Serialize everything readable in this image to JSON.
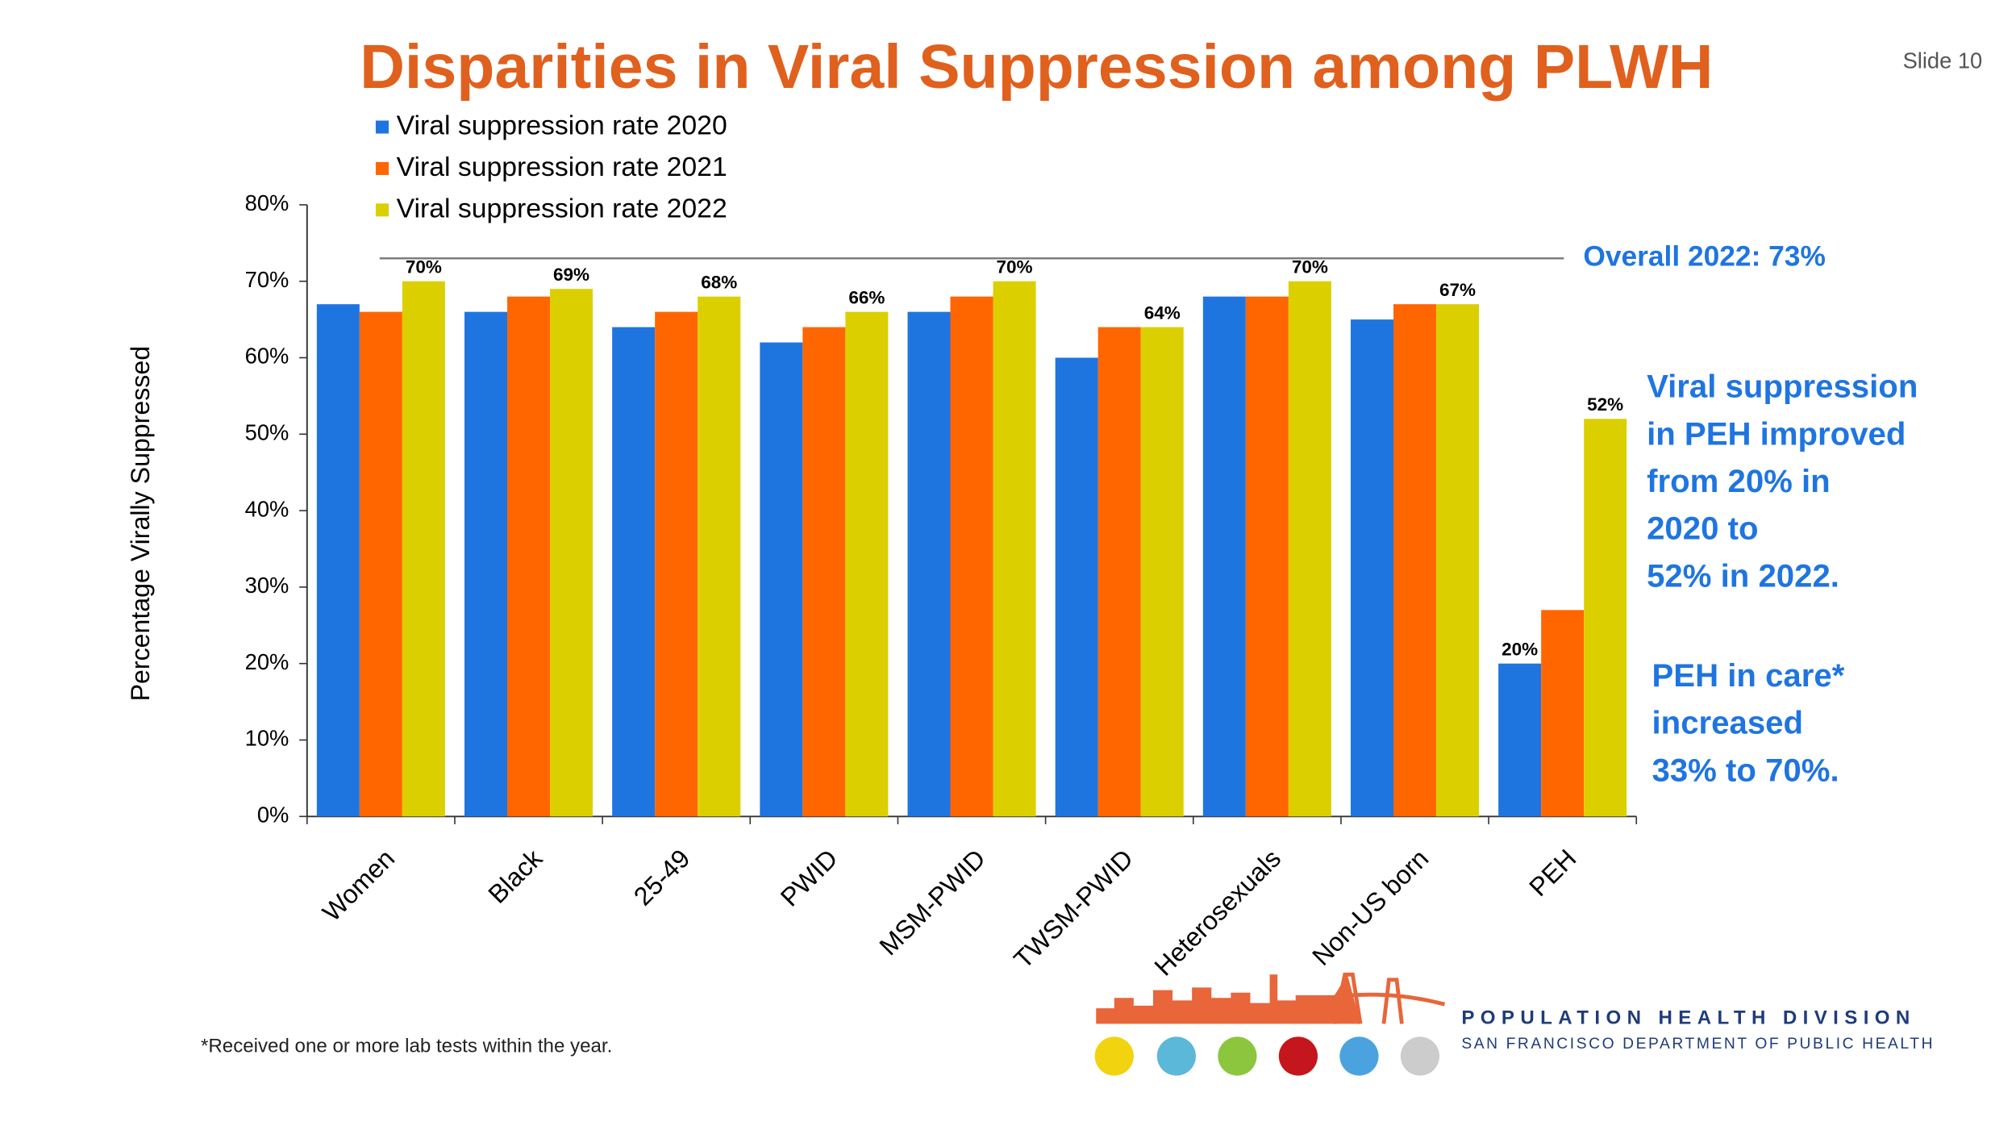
{
  "slide": "Slide 10",
  "footnote": "*Received one or more lab tests within the year.",
  "logo": {
    "line1": "POPULATION HEALTH DIVISION",
    "line2": "SAN FRANCISCO DEPARTMENT OF PUBLIC HEALTH"
  },
  "chart_data": {
    "type": "bar",
    "title": "Disparities in Viral Suppression among PLWH",
    "y_label": "Percentage Virally Suppressed",
    "categories": [
      "Women",
      "Black",
      "25-49",
      "PWID",
      "MSM-PWID",
      "TWSM-PWID",
      "Heterosexuals",
      "Non-US born",
      "PEH"
    ],
    "series": [
      {
        "name": "Viral suppression rate 2020",
        "color": "#1f75e0",
        "values": [
          67,
          66,
          64,
          62,
          66,
          60,
          68,
          65,
          20
        ],
        "value_labels": [
          null,
          null,
          null,
          null,
          null,
          null,
          null,
          null,
          "20%"
        ]
      },
      {
        "name": "Viral suppression rate 2021",
        "color": "#ff6600",
        "values": [
          66,
          68,
          66,
          64,
          68,
          64,
          68,
          67,
          27
        ]
      },
      {
        "name": "Viral suppression rate 2022",
        "color": "#dccf00",
        "values": [
          70,
          69,
          68,
          66,
          70,
          64,
          70,
          67,
          52
        ],
        "value_labels": [
          "70%",
          "69%",
          "68%",
          "66%",
          "70%",
          "64%",
          "70%",
          "67%",
          "52%"
        ]
      }
    ],
    "ylim": [
      0,
      80
    ],
    "yticks": [
      {
        "value": 0,
        "label": "0%"
      },
      {
        "value": 10,
        "label": "10%"
      },
      {
        "value": 20,
        "label": "20%"
      },
      {
        "value": 30,
        "label": "30%"
      },
      {
        "value": 40,
        "label": "40%"
      },
      {
        "value": 50,
        "label": "50%"
      },
      {
        "value": 60,
        "label": "60%"
      },
      {
        "value": 70,
        "label": "70%"
      },
      {
        "value": 80,
        "label": "80%"
      }
    ],
    "reference_line": {
      "value": 73,
      "label": "Overall 2022: 73%",
      "color": "#1f75e0"
    },
    "annotations": [
      {
        "lines": [
          "Viral suppression",
          "in PEH improved",
          "from 20% in",
          "2020 to",
          "52% in 2022."
        ]
      },
      {
        "lines": [
          "PEH in care*",
          "increased",
          "33% to 70%."
        ]
      }
    ],
    "legend": "top-left"
  }
}
